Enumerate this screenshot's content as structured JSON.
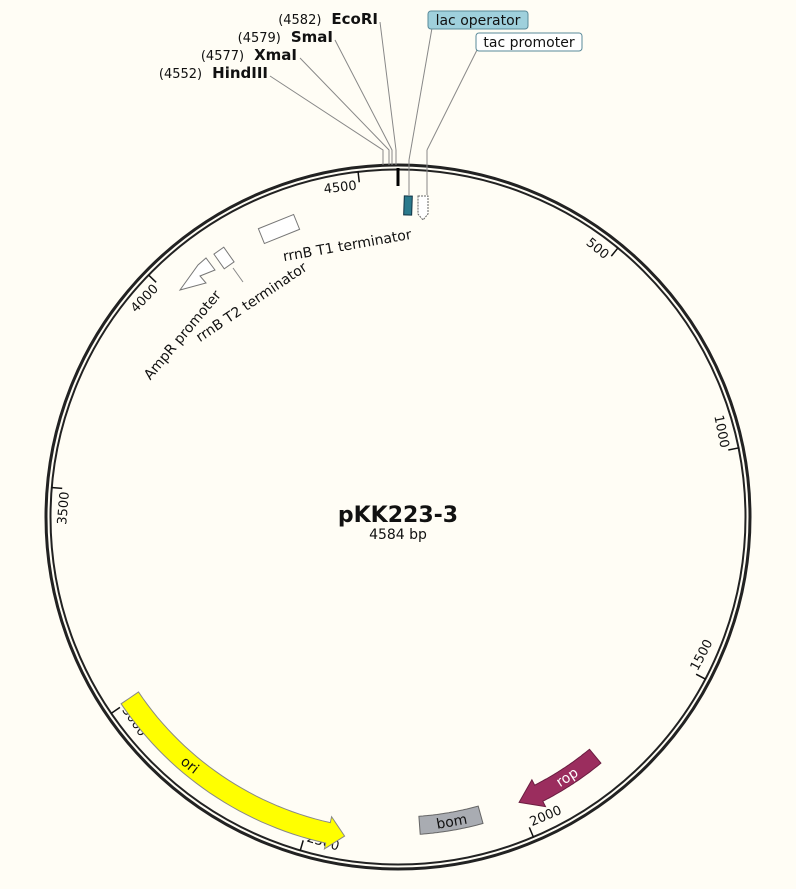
{
  "map": {
    "name": "pKK223-3",
    "length": "4584 bp",
    "ticks": [
      500,
      1000,
      1500,
      2000,
      2500,
      3000,
      3500,
      4000,
      4500
    ],
    "sites": [
      {
        "position": "(4582)",
        "name": "EcoRI"
      },
      {
        "position": "(4579)",
        "name": "SmaI"
      },
      {
        "position": "(4577)",
        "name": "XmaI"
      },
      {
        "position": "(4552)",
        "name": "HindIII"
      }
    ],
    "features": [
      {
        "label": "lac operator"
      },
      {
        "label": "tac promoter"
      },
      {
        "label": "rrnB T1 terminator"
      },
      {
        "label": "rrnB T2 terminator"
      },
      {
        "label": "AmpR promoter"
      },
      {
        "label": "ori"
      },
      {
        "label": "bom"
      },
      {
        "label": "rop"
      }
    ]
  }
}
